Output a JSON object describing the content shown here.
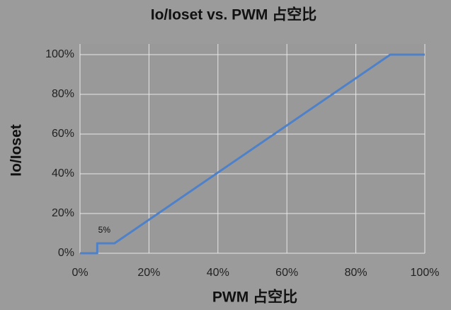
{
  "chart_data": {
    "type": "line",
    "title": "Io/Ioset vs. PWM 占空比",
    "x_label": "PWM 占空比",
    "y_label": "Io/Ioset",
    "x": [
      0,
      5,
      5,
      10,
      90,
      100
    ],
    "series": [
      {
        "name": "Io/Ioset",
        "color": "#4f81c9",
        "values": [
          0,
          0,
          5,
          5,
          100,
          100
        ]
      }
    ],
    "annotation": "5%",
    "xlim": [
      0,
      100
    ],
    "ylim": [
      0,
      100
    ],
    "xticks": [
      {
        "value": 0,
        "label": "0%"
      },
      {
        "value": 20,
        "label": "20%"
      },
      {
        "value": 40,
        "label": "40%"
      },
      {
        "value": 60,
        "label": "60%"
      },
      {
        "value": 80,
        "label": "80%"
      },
      {
        "value": 100,
        "label": "100%"
      }
    ],
    "yticks": [
      {
        "value": 0,
        "label": "0%"
      },
      {
        "value": 20,
        "label": "20%"
      },
      {
        "value": 40,
        "label": "40%"
      },
      {
        "value": 60,
        "label": "60%"
      },
      {
        "value": 80,
        "label": "80%"
      },
      {
        "value": 100,
        "label": "100%"
      }
    ],
    "grid": true
  }
}
